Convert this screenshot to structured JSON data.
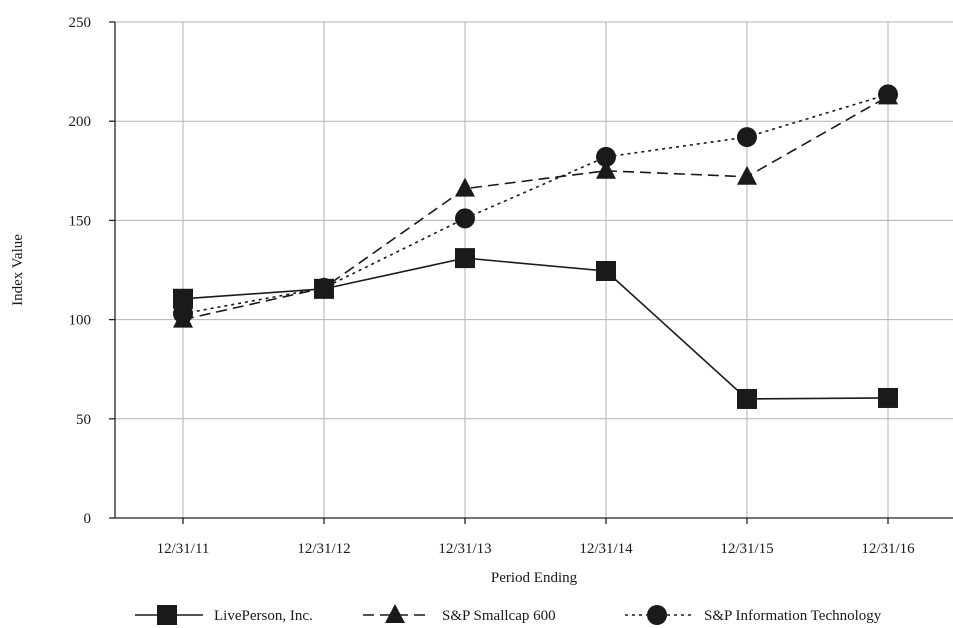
{
  "chart_data": {
    "type": "line",
    "categories": [
      "12/31/11",
      "12/31/12",
      "12/31/13",
      "12/31/14",
      "12/31/15",
      "12/31/16"
    ],
    "series": [
      {
        "name": "LivePerson, Inc.",
        "values": [
          110.5,
          115.5,
          131,
          124.5,
          60,
          60.5
        ],
        "marker": "square",
        "dash": "solid"
      },
      {
        "name": "S&P Smallcap 600",
        "values": [
          100,
          116,
          166,
          175,
          172,
          212.5
        ],
        "marker": "triangle",
        "dash": "dashed"
      },
      {
        "name": "S&P Information Technology",
        "values": [
          103,
          116,
          151,
          182,
          192,
          213.5
        ],
        "marker": "circle",
        "dash": "dotted"
      }
    ],
    "xlabel": "Period Ending",
    "ylabel": "Index Value",
    "ylim": [
      0,
      250
    ],
    "yticks": [
      0,
      50,
      100,
      150,
      200,
      250
    ],
    "grid": true,
    "legend_position": "bottom"
  }
}
